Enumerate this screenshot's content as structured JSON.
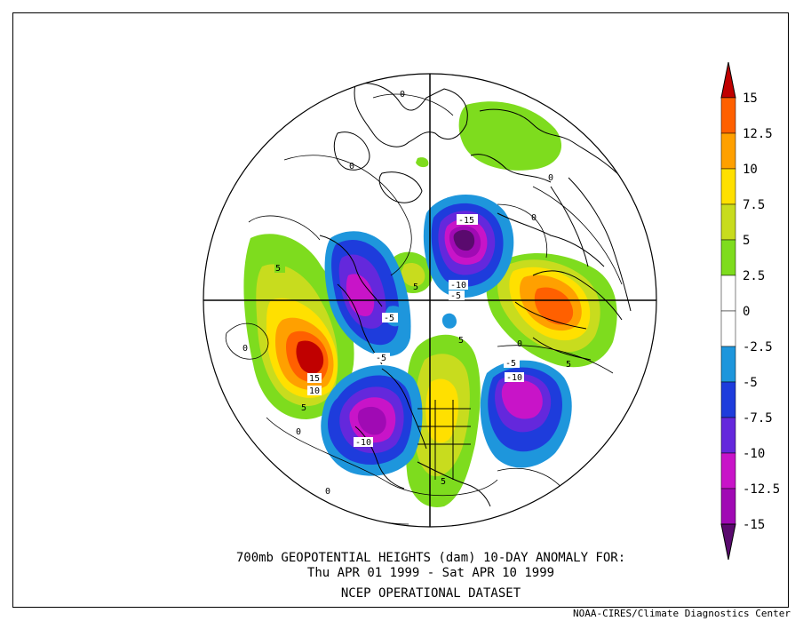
{
  "title": {
    "line1": "700mb GEOPOTENTIAL HEIGHTS (dam)   10-DAY ANOMALY FOR:",
    "line2": "Thu APR 01 1999 - Sat APR 10 1999",
    "line3": "NCEP OPERATIONAL DATASET"
  },
  "credit": "NOAA-CIRES/Climate Diagnostics Center",
  "colorbar": {
    "labels": [
      "15",
      "12.5",
      "10",
      "7.5",
      "5",
      "2.5",
      "0",
      "-2.5",
      "-5",
      "-7.5",
      "-10",
      "-12.5",
      "-15"
    ],
    "colors": [
      "#c00000",
      "#ff6000",
      "#ffa000",
      "#ffe000",
      "#c8dc1e",
      "#7edc1e",
      "#ffffff",
      "#ffffff",
      "#1e96dc",
      "#1e3cdc",
      "#6428dc",
      "#c814c8",
      "#a00ab4",
      "#5a0a6e"
    ]
  },
  "contour_labels": [
    "5",
    "0",
    "0",
    "0",
    "0",
    "15",
    "10",
    "5",
    "0",
    "-5",
    "-5",
    "-10",
    "-15",
    "-10",
    "-5",
    "5",
    "5",
    "0",
    "-5",
    "-10",
    "5",
    "0",
    "5",
    "0"
  ]
}
